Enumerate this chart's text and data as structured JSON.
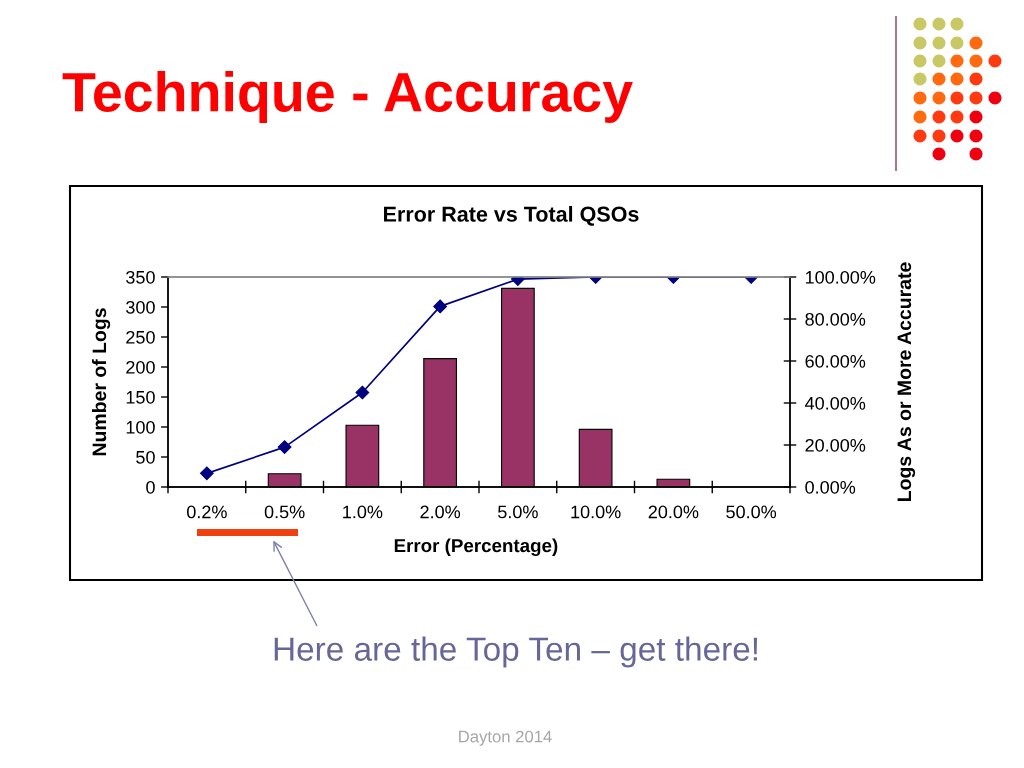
{
  "chart_data": {
    "type": "bar",
    "title": "Technique - Accuracy",
    "subtitle": "Error Rate vs Total QSOs",
    "xlabel": "Error (Percentage)",
    "ylabel": "Number of Logs",
    "y2label": "Logs As or More Accurate",
    "categories": [
      "0.2%",
      "0.5%",
      "1.0%",
      "2.0%",
      "5.0%",
      "10.0%",
      "20.0%",
      "50.0%"
    ],
    "series": [
      {
        "color": "#993366",
        "values": [
          null,
          22,
          103,
          214,
          331,
          96,
          13,
          null
        ]
      },
      {
        "type": "line",
        "axis": "y2",
        "color": "#000080",
        "values": [
          6.5,
          19,
          45,
          86,
          99,
          100,
          100,
          100
        ]
      }
    ],
    "ylim": [
      0,
      350
    ],
    "yticks": [
      0,
      50,
      100,
      150,
      200,
      250,
      300,
      350
    ],
    "y2lim": [
      0,
      100
    ],
    "y2ticks": [
      {
        "value": 0,
        "label": "0.00%"
      },
      {
        "value": 20,
        "label": "20.00%"
      },
      {
        "value": 40,
        "label": "40.00%"
      },
      {
        "value": 60,
        "label": "60.00%"
      },
      {
        "value": 80,
        "label": "80.00%"
      },
      {
        "value": 100,
        "label": "100.00%"
      }
    ],
    "marker": "diamond",
    "line_style": "solid",
    "annotations": [
      "Here are the Top Ten – get there!",
      "Dayton 2014"
    ]
  }
}
